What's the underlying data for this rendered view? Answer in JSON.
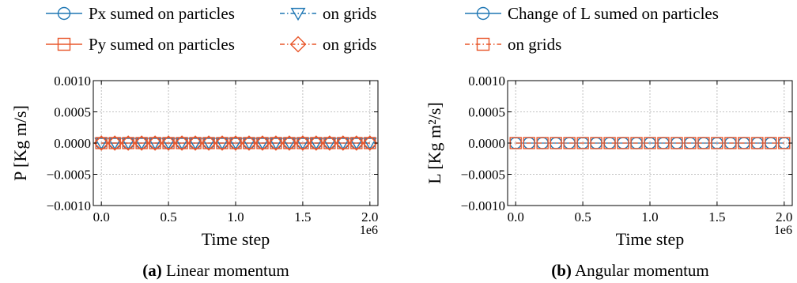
{
  "colors": {
    "blue": "#1f77b4",
    "orange": "#e8562a",
    "grid": "#b0b0b0",
    "axis": "#000000"
  },
  "chart_data": [
    {
      "type": "line",
      "caption_tag": "(a)",
      "caption_text": "Linear momentum",
      "xlabel": "Time step",
      "ylabel": "P [Kg m/s]",
      "x_offset_label": "1e6",
      "xlim": [
        -0.06,
        2.06
      ],
      "ylim": [
        -0.001,
        0.001
      ],
      "xticks": [
        0.0,
        0.5,
        1.0,
        1.5,
        2.0
      ],
      "xtick_labels": [
        "0.0",
        "0.5",
        "1.0",
        "1.5",
        "2.0"
      ],
      "yticks": [
        0.001,
        0.0005,
        0.0,
        -0.0005,
        -0.001
      ],
      "ytick_labels": [
        "0.0010",
        "0.0005",
        "0.0000",
        "−0.0005",
        "−0.0010"
      ],
      "grid": true,
      "legend_position": "top",
      "x": [
        0.0,
        0.1,
        0.2,
        0.3,
        0.4,
        0.5,
        0.6,
        0.7,
        0.8,
        0.9,
        1.0,
        1.1,
        1.2,
        1.3,
        1.4,
        1.5,
        1.6,
        1.7,
        1.8,
        1.9,
        2.0
      ],
      "series": [
        {
          "name": "Px sumed on particles",
          "color": "#1f77b4",
          "linestyle": "solid",
          "marker": "circle",
          "values": [
            0,
            0,
            0,
            0,
            0,
            0,
            0,
            0,
            0,
            0,
            0,
            0,
            0,
            0,
            0,
            0,
            0,
            0,
            0,
            0,
            0
          ]
        },
        {
          "name": "on grids",
          "color": "#1f77b4",
          "linestyle": "dashdot",
          "marker": "triangle-down",
          "values": [
            0,
            0,
            0,
            0,
            0,
            0,
            0,
            0,
            0,
            0,
            0,
            0,
            0,
            0,
            0,
            0,
            0,
            0,
            0,
            0,
            0
          ]
        },
        {
          "name": "Py sumed on particles",
          "color": "#e8562a",
          "linestyle": "solid",
          "marker": "square",
          "values": [
            0,
            0,
            0,
            0,
            0,
            0,
            0,
            0,
            0,
            0,
            0,
            0,
            0,
            0,
            0,
            0,
            0,
            0,
            0,
            0,
            0
          ]
        },
        {
          "name": "on grids",
          "color": "#e8562a",
          "linestyle": "dashdot",
          "marker": "diamond",
          "values": [
            0,
            0,
            0,
            0,
            0,
            0,
            0,
            0,
            0,
            0,
            0,
            0,
            0,
            0,
            0,
            0,
            0,
            0,
            0,
            0,
            0
          ]
        }
      ]
    },
    {
      "type": "line",
      "caption_tag": "(b)",
      "caption_text": "Angular momentum",
      "xlabel": "Time step",
      "ylabel": "L [Kg m²/s]",
      "x_offset_label": "1e6",
      "xlim": [
        -0.06,
        2.06
      ],
      "ylim": [
        -0.001,
        0.001
      ],
      "xticks": [
        0.0,
        0.5,
        1.0,
        1.5,
        2.0
      ],
      "xtick_labels": [
        "0.0",
        "0.5",
        "1.0",
        "1.5",
        "2.0"
      ],
      "yticks": [
        0.001,
        0.0005,
        0.0,
        -0.0005,
        -0.001
      ],
      "ytick_labels": [
        "0.0010",
        "0.0005",
        "0.0000",
        "−0.0005",
        "−0.0010"
      ],
      "grid": true,
      "legend_position": "top",
      "x": [
        0.0,
        0.1,
        0.2,
        0.3,
        0.4,
        0.5,
        0.6,
        0.7,
        0.8,
        0.9,
        1.0,
        1.1,
        1.2,
        1.3,
        1.4,
        1.5,
        1.6,
        1.7,
        1.8,
        1.9,
        2.0
      ],
      "series": [
        {
          "name": "Change of L sumed on particles",
          "color": "#1f77b4",
          "linestyle": "solid",
          "marker": "circle",
          "values": [
            0,
            0,
            0,
            0,
            0,
            0,
            0,
            0,
            0,
            0,
            0,
            0,
            0,
            0,
            0,
            0,
            0,
            0,
            0,
            0,
            0
          ]
        },
        {
          "name": "on grids",
          "color": "#e8562a",
          "linestyle": "dashdot",
          "marker": "square",
          "values": [
            0,
            0,
            0,
            0,
            0,
            0,
            0,
            0,
            0,
            0,
            0,
            0,
            0,
            0,
            0,
            0,
            0,
            0,
            0,
            0,
            0
          ]
        }
      ]
    }
  ]
}
